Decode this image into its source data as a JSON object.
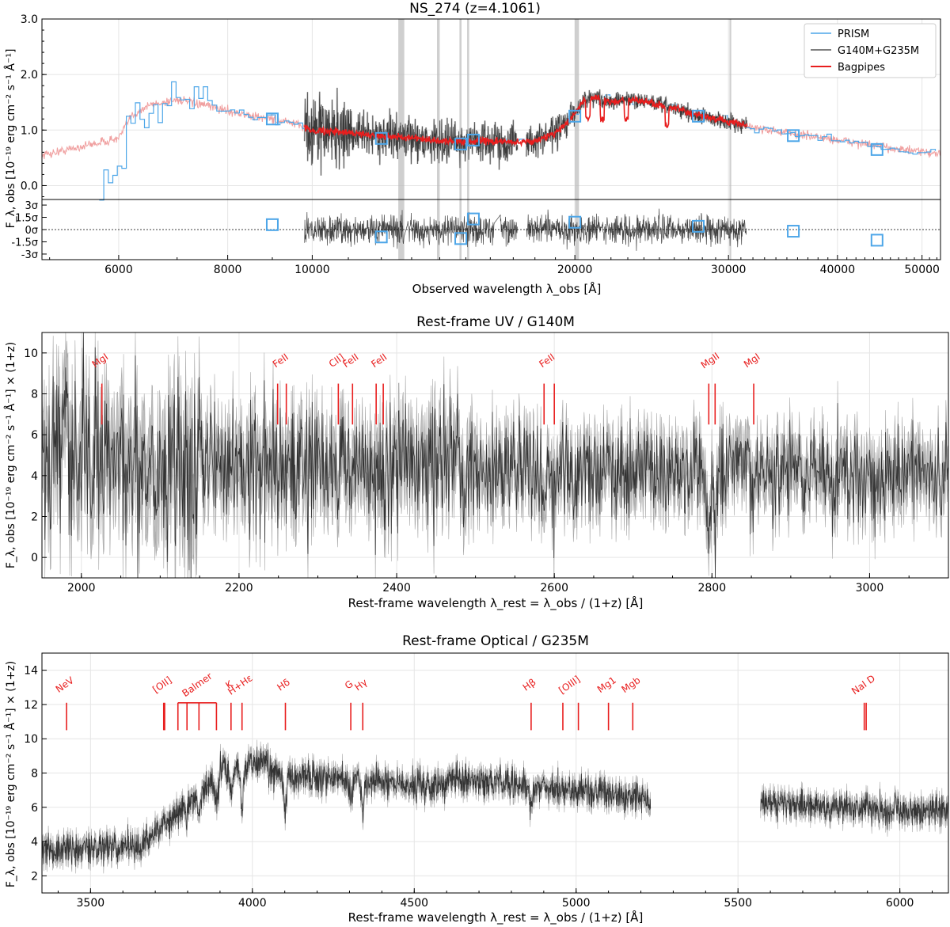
{
  "chart_data": [
    {
      "type": "line",
      "title": "NS_274 (z=4.1061)",
      "xlabel": "Observed wavelength λ_obs [Å]",
      "ylabel": "F_λ, obs [10⁻¹⁹ erg cm⁻² s⁻¹ Å⁻¹]",
      "xscale": "log",
      "xlim": [
        4900,
        52500
      ],
      "ylim": [
        -0.25,
        3.0
      ],
      "xticks": [
        6000,
        8000,
        10000,
        20000,
        30000,
        40000,
        50000
      ],
      "xtick_labels": [
        "6000",
        "8000",
        "10000",
        "20000",
        "30000",
        "40000",
        "50000"
      ],
      "yticks": [
        0.0,
        1.0,
        2.0,
        3.0
      ],
      "ytick_labels": [
        "0.0",
        "1.0",
        "2.0",
        "3.0"
      ],
      "grid": true,
      "legend": "top-right",
      "legend_entries": [
        "PRISM",
        "G140M+G235M",
        "Bagpipes"
      ],
      "series_colors": {
        "prism": "#4da6e8",
        "grating": "#555555",
        "bagpipes": "#e81e1e",
        "bagpipes_faint": "#f0a0a0",
        "photometry": "#4da6e8"
      },
      "masked_regions": [
        [
          12550,
          12750
        ],
        [
          13900,
          14000
        ],
        [
          14750,
          14830
        ],
        [
          15050,
          15130
        ],
        [
          20000,
          20220
        ],
        [
          30080,
          30220
        ]
      ],
      "photometry_x": [
        9000,
        12000,
        14800,
        15300,
        20000,
        27700,
        35600,
        44400
      ],
      "photometry_y": [
        1.2,
        0.85,
        0.75,
        0.82,
        1.25,
        1.25,
        0.9,
        0.65
      ],
      "residual_panel": {
        "yticks": [
          3,
          1.5,
          0,
          -1.5,
          -3
        ],
        "ytick_labels": [
          "3σ",
          "1.5σ",
          "0σ",
          "-1.5σ",
          "-3σ"
        ],
        "photometry_residuals": [
          0.6,
          -0.9,
          -1.1,
          1.3,
          0.9,
          0.4,
          -0.2,
          -1.3
        ]
      }
    },
    {
      "type": "line",
      "title": "Rest-frame UV / G140M",
      "xlabel": "Rest-frame wavelength λ_rest = λ_obs / (1+z) [Å]",
      "ylabel": "F_λ, obs [10⁻¹⁹ erg cm⁻² s⁻¹ Å⁻¹] × (1+z)",
      "xlim": [
        1950,
        3100
      ],
      "ylim": [
        -1.0,
        11.0
      ],
      "xticks": [
        2000,
        2200,
        2400,
        2600,
        2800,
        3000
      ],
      "xtick_labels": [
        "2000",
        "2200",
        "2400",
        "2600",
        "2800",
        "3000"
      ],
      "yticks": [
        0,
        2,
        4,
        6,
        8,
        10
      ],
      "ytick_labels": [
        "0",
        "2",
        "4",
        "6",
        "8",
        "10"
      ],
      "grid": true,
      "line_labels": [
        {
          "label": "MgI",
          "x": 2026,
          "lines": [
            2026
          ]
        },
        {
          "label": "FeII",
          "x": 2255,
          "lines": [
            2249,
            2260
          ]
        },
        {
          "label": "CII]",
          "x": 2326,
          "lines": [
            2326
          ]
        },
        {
          "label": "FeII",
          "x": 2344,
          "lines": [
            2344
          ]
        },
        {
          "label": "FeII",
          "x": 2380,
          "lines": [
            2374,
            2383
          ]
        },
        {
          "label": "FeII",
          "x": 2593,
          "lines": [
            2587,
            2600
          ]
        },
        {
          "label": "MgII",
          "x": 2800,
          "lines": [
            2796,
            2804
          ]
        },
        {
          "label": "MgI",
          "x": 2853,
          "lines": [
            2853
          ]
        }
      ]
    },
    {
      "type": "line",
      "title": "Rest-frame Optical / G235M",
      "xlabel": "Rest-frame wavelength λ_rest = λ_obs / (1+z) [Å]",
      "ylabel": "F_λ, obs [10⁻¹⁹ erg cm⁻² s⁻¹ Å⁻¹] × (1+z)",
      "xlim": [
        3350,
        6150
      ],
      "ylim": [
        1.0,
        15.0
      ],
      "xticks": [
        3500,
        4000,
        4500,
        5000,
        5500,
        6000
      ],
      "xtick_labels": [
        "3500",
        "4000",
        "4500",
        "5000",
        "5500",
        "6000"
      ],
      "yticks": [
        2,
        4,
        6,
        8,
        10,
        12,
        14
      ],
      "ytick_labels": [
        "2",
        "4",
        "6",
        "8",
        "10",
        "12",
        "14"
      ],
      "grid": true,
      "line_labels": [
        {
          "label": "NeV",
          "x": 3426,
          "lines": [
            3426
          ]
        },
        {
          "label": "[OII]",
          "x": 3727,
          "lines": [
            3726,
            3729
          ]
        },
        {
          "label": "Balmer",
          "x": 3835,
          "lines": [
            3770,
            3798,
            3835,
            3889
          ]
        },
        {
          "label": "K",
          "x": 3934,
          "lines": [
            3934
          ]
        },
        {
          "label": "H+Hε",
          "x": 3968,
          "lines": [
            3968
          ]
        },
        {
          "label": "Hδ",
          "x": 4102,
          "lines": [
            4102
          ]
        },
        {
          "label": "G",
          "x": 4304,
          "lines": [
            4304
          ]
        },
        {
          "label": "Hγ",
          "x": 4341,
          "lines": [
            4341
          ]
        },
        {
          "label": "Hβ",
          "x": 4861,
          "lines": [
            4861
          ]
        },
        {
          "label": "[OIII]",
          "x": 4985,
          "lines": [
            4959,
            5007
          ]
        },
        {
          "label": "Mg1",
          "x": 5100,
          "lines": [
            5100
          ]
        },
        {
          "label": "Mgb",
          "x": 5175,
          "lines": [
            5175
          ]
        },
        {
          "label": "NaI D",
          "x": 5893,
          "lines": [
            5890,
            5896
          ]
        }
      ]
    }
  ]
}
